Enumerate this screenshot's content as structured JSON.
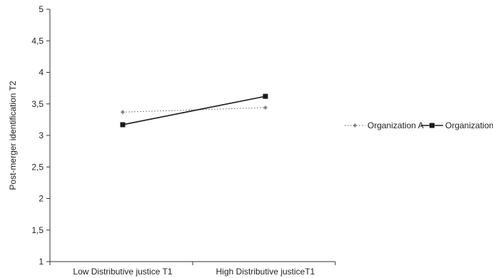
{
  "chart_data": {
    "type": "line",
    "categories": [
      "Low Distributive justice T1",
      "High Distributive justiceT1"
    ],
    "ylabel": "Post-merger identification T2",
    "xlabel": "",
    "ylim": [
      1,
      5
    ],
    "yticks": [
      1,
      1.5,
      2,
      2.5,
      3,
      3.5,
      4,
      4.5,
      5
    ],
    "ytick_labels": [
      "1",
      "1,5",
      "2",
      "2,5",
      "3",
      "3,5",
      "4",
      "4,5",
      "5"
    ],
    "grid": false,
    "legend_position": "right",
    "series": [
      {
        "name": "Organization A",
        "values": [
          3.37,
          3.44
        ],
        "color": "#888888",
        "line_style": "dotted",
        "marker": "diamond"
      },
      {
        "name": "Organization B",
        "values": [
          3.17,
          3.62
        ],
        "color": "#1a1a1a",
        "line_style": "solid",
        "marker": "square"
      }
    ]
  }
}
